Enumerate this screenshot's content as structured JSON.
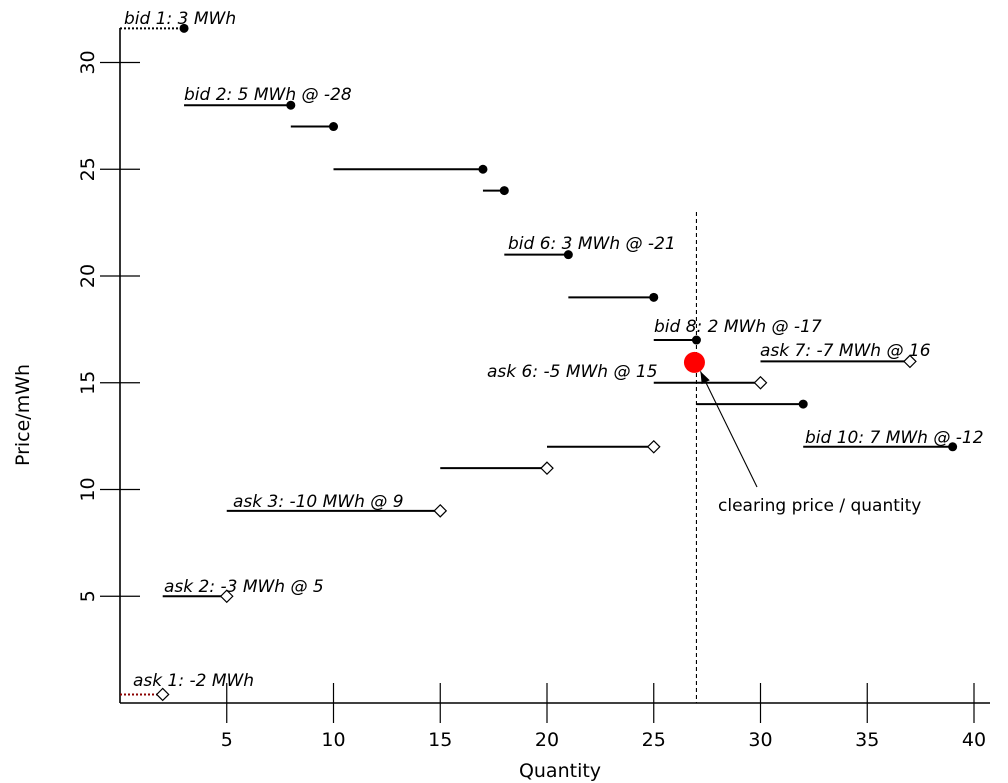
{
  "chart_data": {
    "type": "line",
    "xlabel": "Quantity",
    "ylabel": "Price/mWh",
    "xlim": [
      0,
      41
    ],
    "ylim": [
      0,
      32.5
    ],
    "xticks": [
      5,
      10,
      15,
      20,
      25,
      30,
      35,
      40
    ],
    "yticks": [
      5,
      10,
      15,
      20,
      25,
      30
    ],
    "grid": false,
    "legend": "none",
    "bids": [
      {
        "x0": 0,
        "x1": 3,
        "y": 31.6,
        "label": "bid 1: 3 MWh",
        "style": "dotted",
        "color": "#000000"
      },
      {
        "x0": 3,
        "x1": 8,
        "y": 28,
        "label": "bid 2: 5 MWh @ -28"
      },
      {
        "x0": 8,
        "x1": 10,
        "y": 27,
        "label": ""
      },
      {
        "x0": 10,
        "x1": 17,
        "y": 25,
        "label": ""
      },
      {
        "x0": 17,
        "x1": 18,
        "y": 24,
        "label": ""
      },
      {
        "x0": 18,
        "x1": 21,
        "y": 21,
        "label": "bid 6: 3 MWh @ -21"
      },
      {
        "x0": 21,
        "x1": 25,
        "y": 19,
        "label": ""
      },
      {
        "x0": 25,
        "x1": 27,
        "y": 17,
        "label": "bid 8: 2 MWh @ -17"
      },
      {
        "x0": 27,
        "x1": 32,
        "y": 14,
        "label": ""
      },
      {
        "x0": 32,
        "x1": 39,
        "y": 12,
        "label": "bid 10: 7 MWh @ -12"
      }
    ],
    "asks": [
      {
        "x0": 0,
        "x1": 2,
        "y": 0.4,
        "label": "ask 1: -2 MWh",
        "style": "dotted",
        "color": "#8b0000"
      },
      {
        "x0": 2,
        "x1": 5,
        "y": 5,
        "label": "ask 2: -3 MWh @ 5"
      },
      {
        "x0": 5,
        "x1": 15,
        "y": 9,
        "label": "ask 3: -10 MWh @ 9"
      },
      {
        "x0": 15,
        "x1": 20,
        "y": 11,
        "label": ""
      },
      {
        "x0": 20,
        "x1": 25,
        "y": 12,
        "label": ""
      },
      {
        "x0": 25,
        "x1": 30,
        "y": 15,
        "label": "ask 6: -5 MWh @ 15"
      },
      {
        "x0": 30,
        "x1": 37,
        "y": 16,
        "label": "ask 7: -7 MWh @ 16"
      }
    ],
    "clearing": {
      "x": 27,
      "y": 16,
      "color": "#ff0000",
      "annotation": "clearing price / quantity"
    },
    "vline_x": 27,
    "vline_range": [
      0,
      23
    ]
  }
}
